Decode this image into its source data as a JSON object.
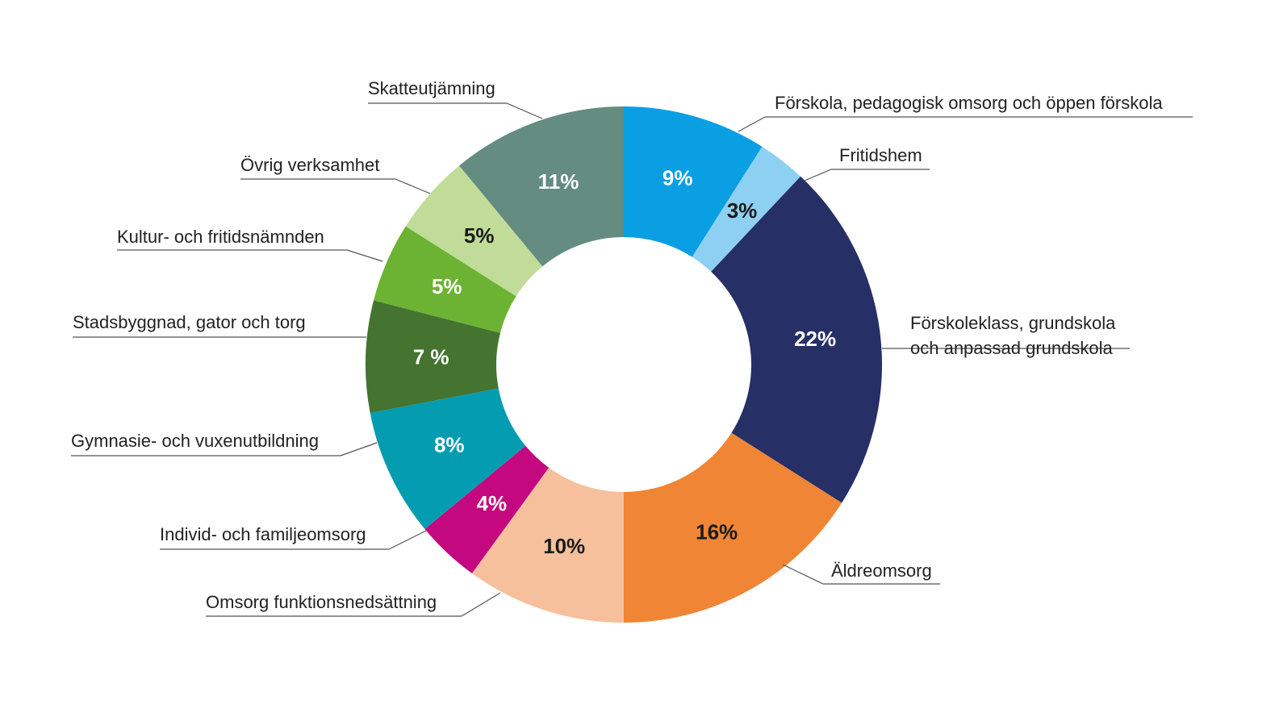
{
  "chart_data": {
    "type": "donut",
    "categories": [
      "Förskola, pedagogisk omsorg och öppen förskola",
      "Fritidshem",
      "Förskoleklass, grundskola och anpassad grundskola",
      "Äldreomsorg",
      "Omsorg funktionsnedsättning",
      "Individ- och familjeomsorg",
      "Gymnasie- och vuxenutbildning",
      "Stadsbyggnad, gator och torg",
      "Kultur- och fritidsnämnden",
      "Övrig verksamhet",
      "Skatteutjämning"
    ],
    "values": [
      9,
      3,
      22,
      16,
      10,
      4,
      8,
      7,
      5,
      5,
      11
    ],
    "value_labels": [
      "9%",
      "3%",
      "22%",
      "16%",
      "10%",
      "4%",
      "8%",
      "7 %",
      "5%",
      "5%",
      "11%"
    ],
    "colors": [
      "#0a9fe3",
      "#8dd0f2",
      "#262f66",
      "#ef8535",
      "#f6c09c",
      "#c4087f",
      "#049cb0",
      "#447430",
      "#6db333",
      "#c0dc98",
      "#648c80"
    ]
  }
}
